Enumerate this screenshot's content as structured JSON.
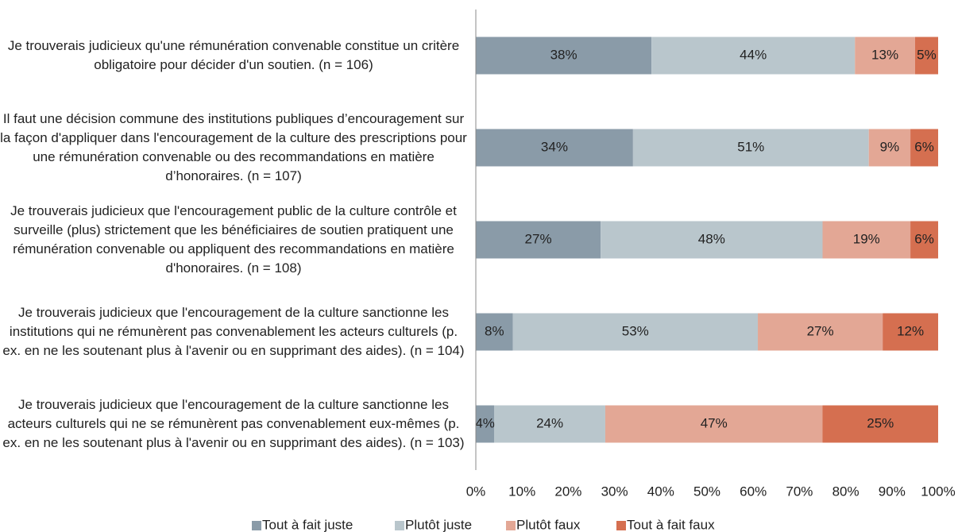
{
  "chart_data": {
    "type": "stacked_barh",
    "categories": [
      "Je trouverais judicieux qu'une rémunération convenable constitue un critère obligatoire pour décider d'un soutien. (n = 106)",
      "Il faut une décision commune des institutions publiques d’encouragement sur la façon d'appliquer dans l'encouragement de la culture des prescriptions pour une rémunération convenable ou des recommandations en matière d’honoraires. (n = 107)",
      "Je trouverais judicieux que l'encouragement public de la culture contrôle et surveille (plus) strictement que les bénéficiaires de soutien pratiquent une rémunération convenable ou appliquent des recommandations en matière d'honoraires. (n = 108)",
      "Je trouverais judicieux que l'encouragement de la culture sanctionne les institutions qui ne rémunèrent pas convenablement les acteurs culturels (p. ex. en ne les soutenant plus à l'avenir ou en supprimant des aides). (n = 104)",
      "Je trouverais judicieux que l'encouragement de la culture sanctionne les acteurs culturels qui ne se rémunèrent pas convenablement eux-mêmes (p. ex. en ne les soutenant plus à l'avenir ou en supprimant des aides). (n = 103)"
    ],
    "series": [
      {
        "name": "Tout à fait juste",
        "color": "#8a9ba8",
        "values": [
          38,
          34,
          27,
          8,
          4
        ],
        "value_labels": [
          "38%",
          "34%",
          "27%",
          "8%",
          "4%"
        ]
      },
      {
        "name": "Plutôt juste",
        "color": "#b9c6cc",
        "values": [
          44,
          51,
          48,
          53,
          24
        ],
        "value_labels": [
          "44%",
          "51%",
          "48%",
          "53%",
          "24%"
        ]
      },
      {
        "name": "Plutôt faux",
        "color": "#e3a795",
        "values": [
          13,
          9,
          19,
          27,
          47
        ],
        "value_labels": [
          "13%",
          "9%",
          "19%",
          "27%",
          "47%"
        ]
      },
      {
        "name": "Tout à fait faux",
        "color": "#d56f50",
        "values": [
          5,
          6,
          6,
          12,
          25
        ],
        "value_labels": [
          "5%",
          "6%",
          "6%",
          "12%",
          "25%"
        ]
      }
    ],
    "xlim": [
      0,
      100
    ],
    "xticks": [
      {
        "value": 0,
        "label": "0%"
      },
      {
        "value": 10,
        "label": "10%"
      },
      {
        "value": 20,
        "label": "20%"
      },
      {
        "value": 30,
        "label": "30%"
      },
      {
        "value": 40,
        "label": "40%"
      },
      {
        "value": 50,
        "label": "50%"
      },
      {
        "value": 60,
        "label": "60%"
      },
      {
        "value": 70,
        "label": "70%"
      },
      {
        "value": 80,
        "label": "80%"
      },
      {
        "value": 90,
        "label": "90%"
      },
      {
        "value": 100,
        "label": "100%"
      }
    ],
    "legend": "bottom"
  }
}
